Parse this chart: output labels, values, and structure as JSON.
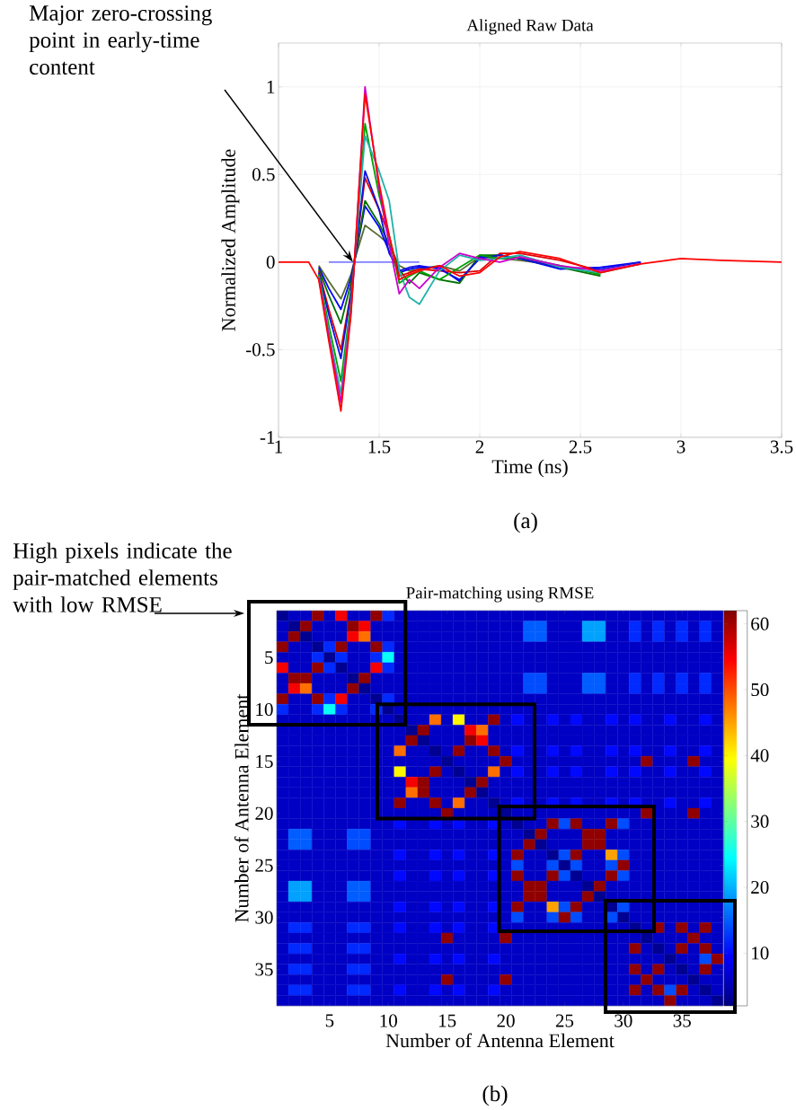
{
  "chart_data": [
    {
      "type": "line",
      "title": "Aligned Raw Data",
      "xlabel": "Time (ns)",
      "ylabel": "Normalized Amplitude",
      "xlim": [
        1,
        3.5
      ],
      "ylim": [
        -1,
        1.25
      ],
      "xticks": [
        1,
        1.5,
        2,
        2.5,
        3,
        3.5
      ],
      "yticks": [
        -1,
        -0.5,
        0,
        0.5,
        1
      ],
      "grid": true,
      "x": [
        1.0,
        1.15,
        1.2,
        1.25,
        1.31,
        1.36,
        1.38,
        1.43,
        1.5,
        1.55,
        1.6,
        1.65,
        1.7,
        1.8,
        1.9,
        2.0,
        2.1,
        2.2,
        2.4,
        2.6,
        2.8,
        3.0,
        3.2,
        3.5
      ],
      "series": [
        {
          "color": "#8080ff",
          "x": [
            1.25,
            1.7
          ],
          "values": [
            0,
            0
          ]
        },
        {
          "color": "#556b2f",
          "values": [
            null,
            null,
            -0.02,
            -0.11,
            -0.21,
            -0.07,
            0.02,
            0.21,
            0.15,
            0.1,
            -0.02,
            -0.05,
            -0.04,
            -0.02,
            -0.05,
            0.03,
            0.02,
            0.01,
            -0.02,
            null,
            null,
            null,
            null,
            null
          ]
        },
        {
          "color": "#0000ff",
          "values": [
            null,
            null,
            -0.03,
            -0.15,
            -0.27,
            -0.09,
            0.02,
            0.32,
            0.2,
            0.06,
            -0.06,
            -0.04,
            -0.03,
            -0.03,
            -0.11,
            0.03,
            0.04,
            0.02,
            -0.04,
            -0.03,
            0,
            null,
            null,
            null
          ]
        },
        {
          "color": "#007000",
          "values": [
            null,
            null,
            -0.04,
            -0.19,
            -0.35,
            -0.12,
            0.02,
            0.35,
            0.22,
            0.1,
            -0.04,
            -0.12,
            -0.06,
            -0.1,
            -0.12,
            0.04,
            0.04,
            0.02,
            null,
            -0.08,
            null,
            null,
            null,
            null
          ]
        },
        {
          "color": "#e00000",
          "values": [
            null,
            null,
            -0.05,
            -0.27,
            -0.5,
            -0.17,
            0.03,
            0.48,
            0.3,
            0.15,
            -0.08,
            -0.06,
            -0.04,
            -0.05,
            -0.06,
            -0.05,
            0.05,
            0.05,
            0.01,
            -0.05,
            -0.01,
            null,
            null,
            null
          ]
        },
        {
          "color": "#1010e0",
          "values": [
            null,
            null,
            -0.06,
            -0.3,
            -0.55,
            -0.18,
            0.03,
            0.52,
            0.3,
            0.05,
            -0.05,
            -0.03,
            -0.02,
            -0.04,
            -0.1,
            0.02,
            0.04,
            0.02,
            -0.03,
            -0.04,
            0,
            null,
            null,
            null
          ]
        },
        {
          "color": "#00a000",
          "values": [
            null,
            null,
            -0.07,
            -0.36,
            -0.68,
            -0.23,
            0.04,
            0.79,
            0.38,
            0.15,
            -0.12,
            -0.08,
            -0.05,
            -0.1,
            -0.03,
            0.04,
            0.02,
            0.03,
            null,
            -0.07,
            null,
            null,
            null,
            null
          ]
        },
        {
          "color": "#20b2aa",
          "values": [
            null,
            null,
            -0.08,
            -0.4,
            -0.75,
            -0.26,
            0.04,
            0.72,
            0.52,
            0.35,
            -0.05,
            -0.2,
            -0.24,
            -0.05,
            0.04,
            0.01,
            0.02,
            0.04,
            -0.03,
            -0.06,
            -0.01,
            null,
            null,
            null
          ]
        },
        {
          "color": "#cc00cc",
          "values": [
            null,
            null,
            -0.09,
            -0.42,
            -0.8,
            -0.28,
            0.05,
            1.0,
            0.42,
            0.1,
            -0.18,
            -0.1,
            -0.15,
            -0.03,
            0.05,
            0.02,
            0,
            0.03,
            -0.02,
            -0.05,
            -0.01,
            null,
            null,
            null
          ]
        },
        {
          "color": "#ff0000",
          "values": [
            0,
            0,
            -0.1,
            -0.45,
            -0.85,
            -0.3,
            0.05,
            0.96,
            0.45,
            0.15,
            -0.1,
            -0.07,
            -0.05,
            -0.02,
            -0.08,
            -0.06,
            0.03,
            0.06,
            0.02,
            -0.06,
            -0.01,
            0.02,
            0.01,
            0
          ]
        }
      ],
      "annotations": [
        {
          "text": "Major zero-crossing point in early-time content",
          "x": 1.37,
          "y": 0
        },
        "(a)"
      ]
    },
    {
      "type": "heatmap",
      "title": "Pair-matching using RMSE",
      "xlabel": "Number of Antenna Element",
      "ylabel": "Number of Antenna Element",
      "xlim": [
        0.5,
        38.5
      ],
      "ylim": [
        38.5,
        0.5
      ],
      "xticks": [
        5,
        10,
        15,
        20,
        25,
        30,
        35
      ],
      "yticks": [
        5,
        10,
        15,
        20,
        25,
        30,
        35
      ],
      "clim": [
        2,
        62
      ],
      "cticks": [
        10,
        20,
        30,
        40,
        50,
        60
      ],
      "cells": [
        [
          3,
          6,
          6,
          61,
          6,
          55,
          6,
          6,
          61,
          12,
          6,
          6,
          6,
          6,
          6,
          6,
          6,
          6,
          6,
          6,
          6,
          6,
          6,
          6,
          6,
          6,
          6,
          6,
          6,
          6,
          6,
          6,
          6,
          6,
          6,
          6,
          6,
          6
        ],
        [
          6,
          3,
          61,
          6,
          6,
          6,
          61,
          55,
          6,
          6,
          6,
          6,
          6,
          6,
          6,
          6,
          6,
          6,
          6,
          6,
          6,
          15,
          15,
          6,
          6,
          6,
          19,
          19,
          6,
          6,
          12,
          6,
          12,
          6,
          12,
          6,
          12,
          6
        ],
        [
          6,
          61,
          3,
          6,
          6,
          6,
          55,
          48,
          6,
          6,
          6,
          6,
          6,
          6,
          6,
          6,
          6,
          6,
          6,
          6,
          6,
          15,
          15,
          6,
          6,
          6,
          19,
          19,
          6,
          6,
          12,
          6,
          12,
          6,
          12,
          6,
          12,
          6
        ],
        [
          61,
          6,
          6,
          3,
          12,
          61,
          6,
          6,
          61,
          12,
          6,
          6,
          6,
          6,
          6,
          6,
          6,
          6,
          6,
          6,
          6,
          6,
          6,
          6,
          6,
          6,
          6,
          6,
          6,
          6,
          6,
          6,
          6,
          6,
          6,
          6,
          6,
          6
        ],
        [
          6,
          6,
          6,
          12,
          3,
          12,
          6,
          6,
          12,
          25,
          6,
          6,
          6,
          6,
          6,
          6,
          6,
          6,
          6,
          6,
          6,
          6,
          6,
          6,
          6,
          6,
          6,
          6,
          6,
          6,
          6,
          6,
          6,
          6,
          6,
          6,
          6,
          6
        ],
        [
          55,
          6,
          6,
          61,
          12,
          3,
          6,
          6,
          55,
          12,
          6,
          6,
          6,
          6,
          6,
          6,
          6,
          6,
          6,
          6,
          6,
          6,
          6,
          6,
          6,
          6,
          6,
          6,
          6,
          6,
          6,
          6,
          6,
          6,
          6,
          6,
          6,
          6
        ],
        [
          6,
          61,
          61,
          6,
          6,
          6,
          3,
          61,
          6,
          6,
          6,
          6,
          6,
          6,
          6,
          6,
          6,
          6,
          6,
          6,
          6,
          14,
          14,
          6,
          6,
          6,
          15,
          15,
          6,
          6,
          12,
          6,
          12,
          6,
          12,
          6,
          12,
          6
        ],
        [
          6,
          55,
          48,
          6,
          6,
          6,
          61,
          3,
          6,
          6,
          6,
          6,
          6,
          6,
          6,
          6,
          6,
          6,
          6,
          6,
          6,
          14,
          14,
          6,
          6,
          6,
          15,
          15,
          6,
          6,
          12,
          6,
          12,
          6,
          12,
          6,
          12,
          6
        ],
        [
          61,
          6,
          6,
          61,
          12,
          55,
          6,
          6,
          3,
          12,
          6,
          6,
          6,
          6,
          6,
          6,
          6,
          6,
          6,
          6,
          6,
          6,
          6,
          6,
          6,
          6,
          6,
          6,
          6,
          6,
          6,
          6,
          6,
          6,
          6,
          6,
          6,
          6
        ],
        [
          12,
          6,
          6,
          12,
          25,
          12,
          6,
          6,
          12,
          3,
          6,
          6,
          6,
          6,
          6,
          6,
          6,
          6,
          6,
          6,
          6,
          6,
          6,
          6,
          6,
          6,
          6,
          6,
          6,
          6,
          6,
          6,
          6,
          6,
          6,
          6,
          6,
          6
        ],
        [
          6,
          6,
          6,
          6,
          6,
          6,
          6,
          6,
          6,
          6,
          3,
          6,
          6,
          48,
          6,
          40,
          6,
          6,
          61,
          6,
          10,
          6,
          6,
          10,
          6,
          10,
          6,
          6,
          10,
          6,
          10,
          6,
          6,
          10,
          6,
          6,
          10,
          6
        ],
        [
          6,
          6,
          6,
          6,
          6,
          6,
          6,
          6,
          6,
          6,
          6,
          3,
          61,
          6,
          6,
          6,
          55,
          48,
          6,
          6,
          6,
          6,
          6,
          6,
          6,
          6,
          6,
          6,
          6,
          6,
          6,
          6,
          6,
          6,
          6,
          6,
          6,
          6
        ],
        [
          6,
          6,
          6,
          6,
          6,
          6,
          6,
          6,
          6,
          6,
          6,
          61,
          3,
          6,
          6,
          6,
          61,
          55,
          6,
          6,
          6,
          6,
          6,
          6,
          6,
          6,
          6,
          6,
          6,
          6,
          6,
          6,
          6,
          6,
          6,
          6,
          6,
          6
        ],
        [
          6,
          6,
          6,
          6,
          6,
          6,
          6,
          6,
          6,
          6,
          48,
          6,
          6,
          3,
          6,
          61,
          6,
          6,
          61,
          6,
          10,
          6,
          6,
          10,
          6,
          10,
          6,
          6,
          10,
          6,
          10,
          6,
          6,
          10,
          6,
          6,
          10,
          6
        ],
        [
          6,
          6,
          6,
          6,
          6,
          6,
          6,
          6,
          6,
          6,
          6,
          6,
          6,
          6,
          3,
          6,
          6,
          6,
          6,
          61,
          6,
          6,
          6,
          6,
          6,
          6,
          6,
          6,
          6,
          6,
          6,
          61,
          6,
          6,
          6,
          61,
          6,
          6
        ],
        [
          6,
          6,
          6,
          6,
          6,
          6,
          6,
          6,
          6,
          6,
          40,
          6,
          6,
          61,
          6,
          3,
          6,
          6,
          48,
          6,
          10,
          6,
          6,
          10,
          6,
          10,
          6,
          6,
          10,
          6,
          10,
          6,
          6,
          10,
          6,
          6,
          10,
          6
        ],
        [
          6,
          6,
          6,
          6,
          6,
          6,
          6,
          6,
          6,
          6,
          6,
          55,
          61,
          6,
          6,
          6,
          3,
          61,
          6,
          6,
          6,
          6,
          6,
          6,
          6,
          6,
          6,
          6,
          6,
          6,
          6,
          6,
          6,
          6,
          6,
          6,
          6,
          6
        ],
        [
          6,
          6,
          6,
          6,
          6,
          6,
          6,
          6,
          6,
          6,
          6,
          48,
          61,
          6,
          6,
          6,
          61,
          3,
          6,
          6,
          6,
          6,
          6,
          6,
          6,
          6,
          6,
          6,
          6,
          6,
          6,
          6,
          6,
          6,
          6,
          6,
          6,
          6
        ],
        [
          6,
          6,
          6,
          6,
          6,
          6,
          6,
          6,
          6,
          6,
          61,
          6,
          6,
          61,
          6,
          48,
          6,
          6,
          3,
          6,
          10,
          6,
          6,
          10,
          6,
          10,
          6,
          6,
          10,
          6,
          10,
          6,
          6,
          10,
          6,
          6,
          10,
          6
        ],
        [
          6,
          6,
          6,
          6,
          6,
          6,
          6,
          6,
          6,
          6,
          6,
          6,
          6,
          6,
          61,
          6,
          6,
          6,
          6,
          3,
          6,
          6,
          6,
          6,
          6,
          6,
          6,
          6,
          6,
          6,
          6,
          61,
          6,
          6,
          6,
          61,
          6,
          6
        ],
        [
          6,
          6,
          6,
          6,
          6,
          6,
          6,
          6,
          6,
          6,
          10,
          6,
          6,
          10,
          6,
          10,
          6,
          6,
          10,
          6,
          3,
          6,
          6,
          61,
          14,
          61,
          6,
          6,
          61,
          14,
          6,
          6,
          6,
          6,
          6,
          6,
          6,
          6
        ],
        [
          6,
          15,
          15,
          6,
          6,
          6,
          14,
          14,
          6,
          6,
          6,
          6,
          6,
          6,
          6,
          6,
          6,
          6,
          6,
          6,
          6,
          3,
          61,
          6,
          6,
          6,
          61,
          61,
          6,
          6,
          6,
          6,
          6,
          6,
          6,
          6,
          6,
          6
        ],
        [
          6,
          15,
          15,
          6,
          6,
          6,
          14,
          14,
          6,
          6,
          6,
          6,
          6,
          6,
          6,
          6,
          6,
          6,
          6,
          6,
          6,
          61,
          3,
          6,
          6,
          6,
          61,
          61,
          6,
          6,
          6,
          6,
          6,
          6,
          6,
          6,
          6,
          6
        ],
        [
          6,
          6,
          6,
          6,
          6,
          6,
          6,
          6,
          6,
          6,
          10,
          6,
          6,
          10,
          6,
          10,
          6,
          6,
          10,
          6,
          61,
          6,
          6,
          3,
          14,
          61,
          6,
          6,
          45,
          14,
          6,
          6,
          6,
          6,
          6,
          6,
          6,
          6
        ],
        [
          6,
          6,
          6,
          6,
          6,
          6,
          6,
          6,
          6,
          6,
          6,
          6,
          6,
          6,
          6,
          6,
          6,
          6,
          6,
          6,
          14,
          6,
          6,
          14,
          3,
          14,
          6,
          6,
          14,
          61,
          6,
          6,
          6,
          6,
          6,
          6,
          6,
          6
        ],
        [
          6,
          6,
          6,
          6,
          6,
          6,
          6,
          6,
          6,
          6,
          10,
          6,
          6,
          10,
          6,
          10,
          6,
          6,
          10,
          6,
          61,
          6,
          6,
          61,
          14,
          3,
          6,
          6,
          61,
          14,
          6,
          6,
          6,
          6,
          6,
          6,
          6,
          6
        ],
        [
          6,
          19,
          19,
          6,
          6,
          6,
          15,
          15,
          6,
          6,
          6,
          6,
          6,
          6,
          6,
          6,
          6,
          6,
          6,
          6,
          6,
          61,
          61,
          6,
          6,
          6,
          3,
          61,
          6,
          6,
          6,
          6,
          6,
          6,
          6,
          6,
          6,
          6
        ],
        [
          6,
          19,
          19,
          6,
          6,
          6,
          15,
          15,
          6,
          6,
          6,
          6,
          6,
          6,
          6,
          6,
          6,
          6,
          6,
          6,
          6,
          61,
          61,
          6,
          6,
          6,
          61,
          3,
          6,
          6,
          6,
          6,
          6,
          6,
          6,
          6,
          6,
          6
        ],
        [
          6,
          6,
          6,
          6,
          6,
          6,
          6,
          6,
          6,
          6,
          10,
          6,
          6,
          10,
          6,
          10,
          6,
          6,
          10,
          6,
          61,
          6,
          6,
          45,
          14,
          61,
          6,
          6,
          3,
          14,
          6,
          6,
          6,
          6,
          6,
          6,
          6,
          6
        ],
        [
          6,
          6,
          6,
          6,
          6,
          6,
          6,
          6,
          6,
          6,
          6,
          6,
          6,
          6,
          6,
          6,
          6,
          6,
          6,
          6,
          14,
          6,
          6,
          14,
          61,
          14,
          6,
          6,
          14,
          3,
          6,
          6,
          6,
          6,
          6,
          6,
          6,
          6
        ],
        [
          6,
          12,
          12,
          6,
          6,
          6,
          12,
          12,
          6,
          6,
          10,
          6,
          6,
          10,
          6,
          10,
          6,
          6,
          10,
          6,
          6,
          6,
          6,
          6,
          6,
          6,
          6,
          6,
          6,
          6,
          3,
          6,
          61,
          6,
          61,
          6,
          61,
          6
        ],
        [
          6,
          6,
          6,
          6,
          6,
          6,
          6,
          6,
          6,
          6,
          6,
          6,
          6,
          6,
          61,
          6,
          6,
          6,
          6,
          61,
          6,
          6,
          6,
          6,
          6,
          6,
          6,
          6,
          6,
          6,
          6,
          3,
          6,
          6,
          6,
          61,
          6,
          6
        ],
        [
          6,
          12,
          12,
          6,
          6,
          6,
          12,
          12,
          6,
          6,
          6,
          6,
          6,
          6,
          6,
          6,
          6,
          6,
          6,
          6,
          6,
          6,
          6,
          6,
          6,
          6,
          6,
          6,
          6,
          6,
          61,
          6,
          3,
          6,
          61,
          6,
          61,
          6
        ],
        [
          6,
          6,
          6,
          6,
          6,
          6,
          6,
          6,
          6,
          6,
          10,
          6,
          6,
          10,
          6,
          10,
          6,
          6,
          10,
          6,
          6,
          6,
          6,
          6,
          6,
          6,
          6,
          6,
          6,
          6,
          6,
          6,
          6,
          3,
          6,
          6,
          14,
          61
        ],
        [
          6,
          12,
          12,
          6,
          6,
          6,
          12,
          12,
          6,
          6,
          6,
          6,
          6,
          6,
          6,
          6,
          6,
          6,
          6,
          6,
          6,
          6,
          6,
          6,
          6,
          6,
          6,
          6,
          6,
          6,
          61,
          6,
          61,
          6,
          3,
          6,
          61,
          6
        ],
        [
          6,
          6,
          6,
          6,
          6,
          6,
          6,
          6,
          6,
          6,
          6,
          6,
          6,
          6,
          61,
          6,
          6,
          6,
          6,
          61,
          6,
          6,
          6,
          6,
          6,
          6,
          6,
          6,
          6,
          6,
          6,
          61,
          6,
          6,
          6,
          3,
          6,
          6
        ],
        [
          6,
          12,
          12,
          6,
          6,
          6,
          12,
          12,
          6,
          6,
          10,
          6,
          6,
          10,
          6,
          10,
          6,
          6,
          10,
          6,
          6,
          6,
          6,
          6,
          6,
          6,
          6,
          6,
          6,
          6,
          61,
          6,
          61,
          14,
          61,
          6,
          3,
          6
        ],
        [
          6,
          6,
          6,
          6,
          6,
          6,
          6,
          6,
          6,
          6,
          6,
          6,
          6,
          6,
          6,
          6,
          6,
          6,
          6,
          6,
          6,
          6,
          6,
          6,
          6,
          6,
          6,
          6,
          6,
          6,
          6,
          6,
          6,
          61,
          6,
          6,
          6,
          3
        ]
      ],
      "annotations": [
        "High pixels indicate the pair-matched elements with low RMSE",
        "(b)"
      ]
    }
  ]
}
